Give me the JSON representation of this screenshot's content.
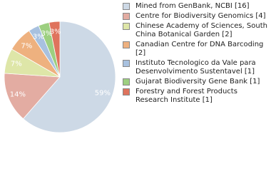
{
  "chart_data": {
    "type": "pie",
    "categories": [
      "Mined from GenBank, NCBI [16]",
      "Centre for Biodiversity Genomics [4]",
      "Chinese Academy of Sciences, South China Botanical Garden [2]",
      "Canadian Centre for DNA Barcoding [2]",
      "Instituto Tecnologico da Vale para Desenvolvimento Sustentavel [1]",
      "Gujarat Biodiversity Gene Bank [1]",
      "Forestry and Forest Products Research Institute [1]"
    ],
    "values": [
      59,
      14,
      7,
      7,
      3,
      3,
      3
    ],
    "colors": [
      "#cdd9e6",
      "#e3aca2",
      "#dee6a8",
      "#eeb17f",
      "#a8c1df",
      "#9dcf80",
      "#df735d"
    ]
  }
}
